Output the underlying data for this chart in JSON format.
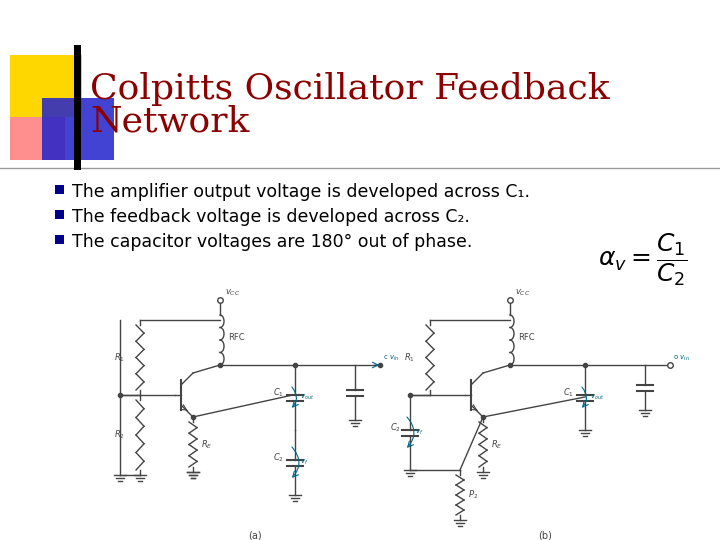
{
  "title_line1": "Colpitts Oscillator Feedback",
  "title_line2": "Network",
  "title_color": "#8B0000",
  "title_fontsize": 26,
  "background_color": "#FFFFFF",
  "bullet_color": "#00008B",
  "bullet_text_color": "#000000",
  "bullet_fontsize": 12.5,
  "bullets": [
    "The amplifier output voltage is developed across C₁.",
    "The feedback voltage is developed across C₂.",
    "The capacitor voltages are 180° out of phase."
  ],
  "separator_color": "#999999",
  "logo_yellow": "#FFD700",
  "logo_red_light": "#FF4444",
  "logo_blue": "#2222CC",
  "circuit_color": "#444444"
}
